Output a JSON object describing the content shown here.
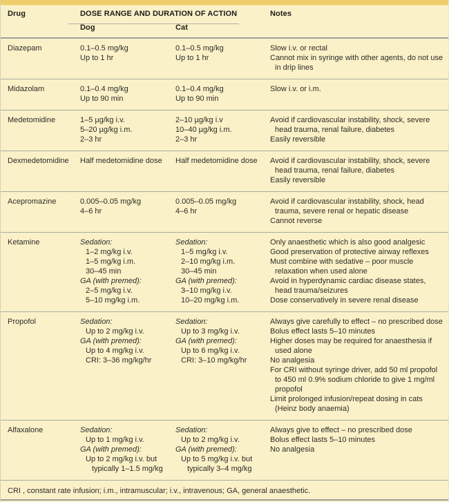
{
  "table": {
    "columns": {
      "drug": "Drug",
      "dose_group": "DOSE RANGE AND DURATION OF ACTION",
      "dog": "Dog",
      "cat": "Cat",
      "notes": "Notes"
    },
    "rows": [
      {
        "drug": "Diazepam",
        "dog": [
          {
            "t": "0.1–0.5 mg/kg"
          },
          {
            "t": "Up to 1 hr"
          }
        ],
        "cat": [
          {
            "t": "0.1–0.5 mg/kg"
          },
          {
            "t": "Up to 1 hr"
          }
        ],
        "notes": [
          "Slow i.v. or rectal",
          "Cannot mix in syringe with other agents, do not use in drip lines"
        ]
      },
      {
        "drug": "Midazolam",
        "dog": [
          {
            "t": "0.1–0.4 mg/kg"
          },
          {
            "t": "Up to 90 min"
          }
        ],
        "cat": [
          {
            "t": "0.1–0.4 mg/kg"
          },
          {
            "t": "Up to 90 min"
          }
        ],
        "notes": [
          "Slow i.v. or i.m."
        ]
      },
      {
        "drug": "Medetomidine",
        "dog": [
          {
            "t": "1–5 µg/kg i.v."
          },
          {
            "t": "5–20 µg/kg i.m."
          },
          {
            "t": "2–3 hr"
          }
        ],
        "cat": [
          {
            "t": "2–10 µg/kg i.v"
          },
          {
            "t": "10–40 µg/kg i.m."
          },
          {
            "t": "2–3 hr"
          }
        ],
        "notes": [
          "Avoid if cardiovascular instability, shock, severe head trauma, renal failure, diabetes",
          "Easily reversible"
        ]
      },
      {
        "drug": "Dexmedetomidine",
        "dog": [
          {
            "t": "Half medetomidine dose"
          }
        ],
        "cat": [
          {
            "t": "Half medetomidine dose"
          }
        ],
        "notes": [
          "Avoid if cardiovascular instability, shock, severe head trauma, renal failure, diabetes",
          "Easily reversible"
        ]
      },
      {
        "drug": "Acepromazine",
        "dog": [
          {
            "t": "0.005–0.05 mg/kg"
          },
          {
            "t": "4–6 hr"
          }
        ],
        "cat": [
          {
            "t": "0.005–0.05 mg/kg"
          },
          {
            "t": "4–6 hr"
          }
        ],
        "notes": [
          "Avoid if cardiovascular instability, shock, head trauma, severe renal or hepatic disease",
          "Cannot reverse"
        ]
      },
      {
        "drug": "Ketamine",
        "dog": [
          {
            "t": "Sedation:",
            "it": true
          },
          {
            "t": "1–2 mg/kg i.v.",
            "i": 1
          },
          {
            "t": "1–5 mg/kg i.m.",
            "i": 1
          },
          {
            "t": "30–45 min",
            "i": 1
          },
          {
            "t": "GA (with premed):",
            "it": true
          },
          {
            "t": "2–5 mg/kg i.v.",
            "i": 1
          },
          {
            "t": "5–10 mg/kg i.m.",
            "i": 1
          }
        ],
        "cat": [
          {
            "t": "Sedation:",
            "it": true
          },
          {
            "t": "1–5 mg/kg i.v.",
            "i": 1
          },
          {
            "t": "2–10 mg/kg i.m.",
            "i": 1
          },
          {
            "t": "30–45 min",
            "i": 1
          },
          {
            "t": "GA (with premed):",
            "it": true
          },
          {
            "t": "3–10 mg/kg i.v.",
            "i": 1
          },
          {
            "t": "10–20 mg/kg i.m.",
            "i": 1
          }
        ],
        "notes": [
          "Only anaesthetic which is also good analgesic",
          "Good preservation of protective airway reflexes",
          "Must combine with sedative – poor muscle relaxation when used alone",
          "Avoid in hyperdynamic cardiac disease states, head trauma/seizures",
          "Dose conservatively in severe renal disease"
        ]
      },
      {
        "drug": "Propofol",
        "dog": [
          {
            "t": "Sedation:",
            "it": true
          },
          {
            "t": "Up to 2 mg/kg i.v.",
            "i": 1
          },
          {
            "t": "GA (with premed):",
            "it": true
          },
          {
            "t": "Up to 4 mg/kg i.v.",
            "i": 1
          },
          {
            "t": "CRI: 3–36 mg/kg/hr",
            "i": 1
          }
        ],
        "cat": [
          {
            "t": "Sedation:",
            "it": true
          },
          {
            "t": "Up to 3 mg/kg i.v.",
            "i": 1
          },
          {
            "t": "GA (with premed):",
            "it": true
          },
          {
            "t": "Up to 6 mg/kg i.v.",
            "i": 1
          },
          {
            "t": "CRI: 3–10 mg/kg/hr",
            "i": 1
          }
        ],
        "notes": [
          "Always give carefully to effect – no prescribed dose",
          "Bolus effect lasts 5–10 minutes",
          "Higher doses may be required for anaesthesia if used alone",
          "No analgesia",
          "For CRI without syringe driver, add 50 ml propofol to 450 ml 0.9% sodium chloride to give 1 mg/ml propofol",
          "Limit prolonged infusion/repeat dosing in cats (Heinz body anaemia)"
        ]
      },
      {
        "drug": "Alfaxalone",
        "dog": [
          {
            "t": "Sedation:",
            "it": true
          },
          {
            "t": "Up to 1 mg/kg i.v.",
            "i": 1
          },
          {
            "t": "GA (with premed):",
            "it": true
          },
          {
            "t": "Up to 2 mg/kg i.v. but",
            "i": 1
          },
          {
            "t": "typically 1–1.5 mg/kg",
            "i": 2
          }
        ],
        "cat": [
          {
            "t": "Sedation:",
            "it": true
          },
          {
            "t": "Up to 2 mg/kg i.v.",
            "i": 1
          },
          {
            "t": "GA (with premed):",
            "it": true
          },
          {
            "t": "Up to 5 mg/kg i.v. but",
            "i": 1
          },
          {
            "t": "typically 3–4 mg/kg",
            "i": 2
          }
        ],
        "notes": [
          "Always give to effect – no prescribed dose",
          "Bolus effect lasts 5–10 minutes",
          "No analgesia"
        ]
      }
    ],
    "footnote": "CRI , constant rate infusion; i.m., intramuscular; i.v., intravenous; GA, general anaesthetic."
  }
}
